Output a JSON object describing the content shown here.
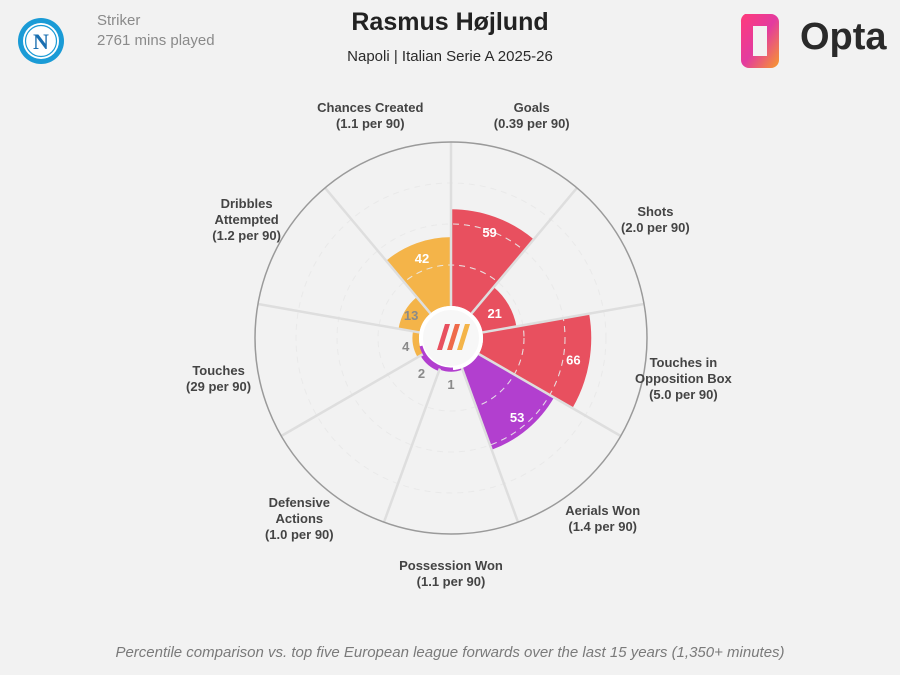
{
  "header": {
    "title": "Rasmus Højlund",
    "subtitle": "Napoli | Italian Serie A 2025-26",
    "position": "Striker",
    "minutes": "2761 mins played",
    "brand": "Opta",
    "club_badge_letter": "N"
  },
  "footnote": "Percentile comparison vs. top five European league forwards over the last 15 years (1,350+ minutes)",
  "colors": {
    "attacking": "#e8505f",
    "possession": "#f4b449",
    "defending": "#b23fcf",
    "background": "#f2f2f2",
    "grid": "#dedede",
    "ring": "#9a9a9a"
  },
  "chart_data": {
    "type": "polar-bar",
    "scale_max": 100,
    "categories": [
      {
        "name": "Goals",
        "per90": "(0.39 per 90)",
        "percentile": 59,
        "group": "attacking"
      },
      {
        "name": "Shots",
        "per90": "(2.0 per 90)",
        "percentile": 21,
        "group": "attacking"
      },
      {
        "name": "Touches in Opposition Box",
        "per90": "(5.0 per 90)",
        "percentile": 66,
        "group": "attacking"
      },
      {
        "name": "Aerials Won",
        "per90": "(1.4 per 90)",
        "percentile": 53,
        "group": "defending"
      },
      {
        "name": "Possession Won",
        "per90": "(1.1 per 90)",
        "percentile": 1,
        "group": "defending"
      },
      {
        "name": "Defensive Actions",
        "per90": "(1.0 per 90)",
        "percentile": 2,
        "group": "defending"
      },
      {
        "name": "Touches",
        "per90": "(29 per 90)",
        "percentile": 4,
        "group": "possession"
      },
      {
        "name": "Dribbles Attempted",
        "per90": "(1.2 per 90)",
        "percentile": 13,
        "group": "possession"
      },
      {
        "name": "Chances Created",
        "per90": "(1.1 per 90)",
        "percentile": 42,
        "group": "possession"
      }
    ]
  }
}
